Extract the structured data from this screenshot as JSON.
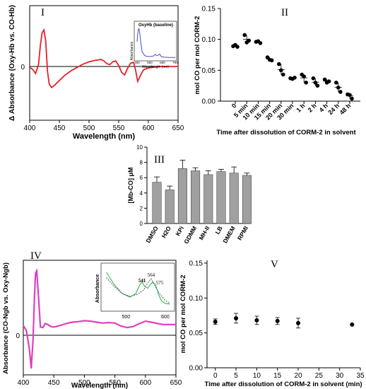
{
  "chart_data": [
    {
      "panel": "I",
      "type": "line",
      "xlabel": "Wavelength (nm)",
      "ylabel": "Δ Absorbance (Oxy-Hb vs. CO-Hb)",
      "xlim": [
        400,
        650
      ],
      "xticks": [
        "400",
        "450",
        "500",
        "550",
        "600",
        "650"
      ],
      "yticks": [
        "0"
      ],
      "ylim": [
        -1,
        1
      ],
      "series_color": "#e8202a",
      "x": [
        400,
        405,
        410,
        415,
        418,
        421,
        424,
        427,
        430,
        433,
        437,
        442,
        450,
        460,
        470,
        480,
        490,
        500,
        510,
        520,
        525,
        530,
        535,
        540,
        545,
        550,
        555,
        560,
        565,
        570,
        575,
        578,
        582,
        587,
        592,
        600,
        610,
        620,
        630,
        640,
        650
      ],
      "y": [
        -0.02,
        -0.06,
        -0.15,
        0.05,
        0.45,
        0.72,
        0.78,
        0.55,
        -0.1,
        -0.38,
        -0.45,
        -0.4,
        -0.3,
        -0.18,
        -0.09,
        -0.02,
        0.05,
        0.1,
        0.13,
        0.15,
        0.12,
        0.06,
        0.04,
        0.1,
        0.12,
        0.02,
        -0.13,
        -0.18,
        -0.04,
        0.07,
        0.09,
        -0.05,
        -0.32,
        -0.18,
        -0.07,
        -0.03,
        -0.01,
        0.0,
        0.0,
        0.0,
        0.0
      ],
      "inset": {
        "title": "OxyHb (baseline)",
        "xlabel": "Wavelength (nm)",
        "ylabel": "Absorbance",
        "xticks": [
          "400",
          "500",
          "600",
          "700"
        ],
        "series_color": "#4a4ad8",
        "x": [
          400,
          405,
          410,
          415,
          420,
          430,
          440,
          460,
          480,
          500,
          520,
          530,
          542,
          555,
          565,
          577,
          590,
          610,
          650,
          700
        ],
        "y": [
          0.55,
          0.8,
          0.96,
          0.99,
          0.88,
          0.5,
          0.2,
          0.08,
          0.05,
          0.05,
          0.06,
          0.07,
          0.12,
          0.08,
          0.09,
          0.13,
          0.05,
          0.03,
          0.02,
          0.02
        ]
      }
    },
    {
      "panel": "II",
      "type": "scatter",
      "xlabel": "Time after dissolution of CORM-2 in solvent",
      "ylabel": "mol CO per mol CORM-2",
      "ylim": [
        0,
        0.15
      ],
      "yticks": [
        "0.00",
        "0.05",
        "0.10",
        "0.15"
      ],
      "categories": [
        "0",
        "5 min",
        "10 min",
        "15 min",
        "20 min",
        "30 min",
        "1 h",
        "2 h",
        "4 h",
        "24 h",
        "48 h"
      ],
      "points": [
        [
          0.089,
          0.088,
          0.091
        ],
        [
          0.107,
          0.098,
          0.095
        ],
        [
          0.096,
          0.094,
          0.097
        ],
        [
          0.071,
          0.066,
          0.067
        ],
        [
          0.06,
          0.043,
          0.05
        ],
        [
          0.037,
          0.038,
          0.036
        ],
        [
          0.043,
          0.03,
          0.04
        ],
        [
          0.037,
          0.025,
          0.03
        ],
        [
          0.035,
          0.032,
          0.03
        ],
        [
          0.03,
          0.015,
          0.022
        ],
        [
          0.011,
          0.004,
          0.01
        ]
      ]
    },
    {
      "panel": "III",
      "type": "bar",
      "ylabel": "[Mb-CO] μM",
      "ylim": [
        0,
        10
      ],
      "yticks": [
        "0",
        "2",
        "4",
        "6",
        "8",
        "10"
      ],
      "categories": [
        "DMSO",
        "H2O",
        "KPi",
        "GDMM",
        "MH-II",
        "LB",
        "DMEM",
        "RPMI"
      ],
      "values": [
        5.4,
        4.4,
        7.2,
        6.9,
        6.4,
        6.8,
        6.6,
        6.3
      ],
      "errors": [
        0.7,
        0.5,
        1.1,
        0.4,
        0.5,
        0.3,
        0.8,
        0.3
      ],
      "bar_color": "#a0a0a0"
    },
    {
      "panel": "IV",
      "type": "line",
      "xlabel": "Wavelength (nm)",
      "ylabel": "Absorbance (CO-Ngb vs. Oxy-Ngb)",
      "xlim": [
        400,
        650
      ],
      "xticks": [
        "400",
        "450",
        "500",
        "550",
        "600",
        "650"
      ],
      "yticks": [
        "0"
      ],
      "ylim": [
        -1,
        1.2
      ],
      "series_color": "#e040c0",
      "x": [
        400,
        405,
        410,
        413,
        416,
        418,
        420,
        422,
        425,
        428,
        432,
        436,
        440,
        445,
        450,
        460,
        470,
        480,
        490,
        500,
        510,
        520,
        530,
        540,
        550,
        560,
        570,
        580,
        590,
        600,
        610,
        620,
        630,
        640,
        650
      ],
      "y": [
        -0.02,
        -0.12,
        -0.5,
        -0.9,
        -0.3,
        0.5,
        1.05,
        1.1,
        0.55,
        -0.05,
        -0.06,
        0.02,
        0.0,
        -0.04,
        -0.05,
        -0.02,
        0.02,
        0.05,
        0.06,
        0.08,
        0.07,
        0.05,
        0.03,
        0.04,
        0.03,
        -0.03,
        -0.06,
        -0.04,
        0.02,
        0.07,
        0.05,
        0.02,
        0.0,
        0.0,
        0.0
      ],
      "inset": {
        "ylabel": "Absorbance",
        "xticks": [
          "500",
          "600"
        ],
        "peak_labels": [
          "541",
          "564",
          "575"
        ],
        "peak_label_colors": [
          "#22a04a",
          "#000000",
          "#22a04a"
        ],
        "series": [
          {
            "name": "",
            "color": "#22b04a",
            "x": [
              450,
              470,
              490,
              510,
              525,
              535,
              541,
              548,
              555,
              562,
              568,
              575,
              582,
              590,
              600,
              612
            ],
            "y": [
              0.9,
              0.55,
              0.3,
              0.2,
              0.3,
              0.55,
              0.62,
              0.5,
              0.45,
              0.55,
              0.62,
              0.55,
              0.3,
              0.1,
              0.02,
              0.0
            ]
          },
          {
            "name": "",
            "color": "#555555",
            "dashed": true,
            "x": [
              450,
              470,
              490,
              510,
              530,
              545,
              555,
              564,
              572,
              585,
              600,
              612
            ],
            "y": [
              0.75,
              0.5,
              0.3,
              0.22,
              0.28,
              0.4,
              0.6,
              0.72,
              0.55,
              0.3,
              0.1,
              0.02
            ]
          }
        ]
      }
    },
    {
      "panel": "V",
      "type": "scatter",
      "xlabel": "Time after dissolution of CORM-2 in solvent (min)",
      "ylabel": "mol CO per mol CORM-2",
      "ylim": [
        0,
        0.15
      ],
      "yticks": [
        "0.00",
        "0.05",
        "0.10",
        "0.15"
      ],
      "xlim": [
        -2,
        35
      ],
      "xticks": [
        "0",
        "5",
        "10",
        "15",
        "20",
        "25",
        "30",
        "35"
      ],
      "x": [
        0,
        5,
        10,
        15,
        20,
        33
      ],
      "y": [
        0.066,
        0.071,
        0.068,
        0.067,
        0.064,
        0.062
      ],
      "errors": [
        0.004,
        0.007,
        0.006,
        0.005,
        0.007,
        0.0
      ]
    }
  ]
}
